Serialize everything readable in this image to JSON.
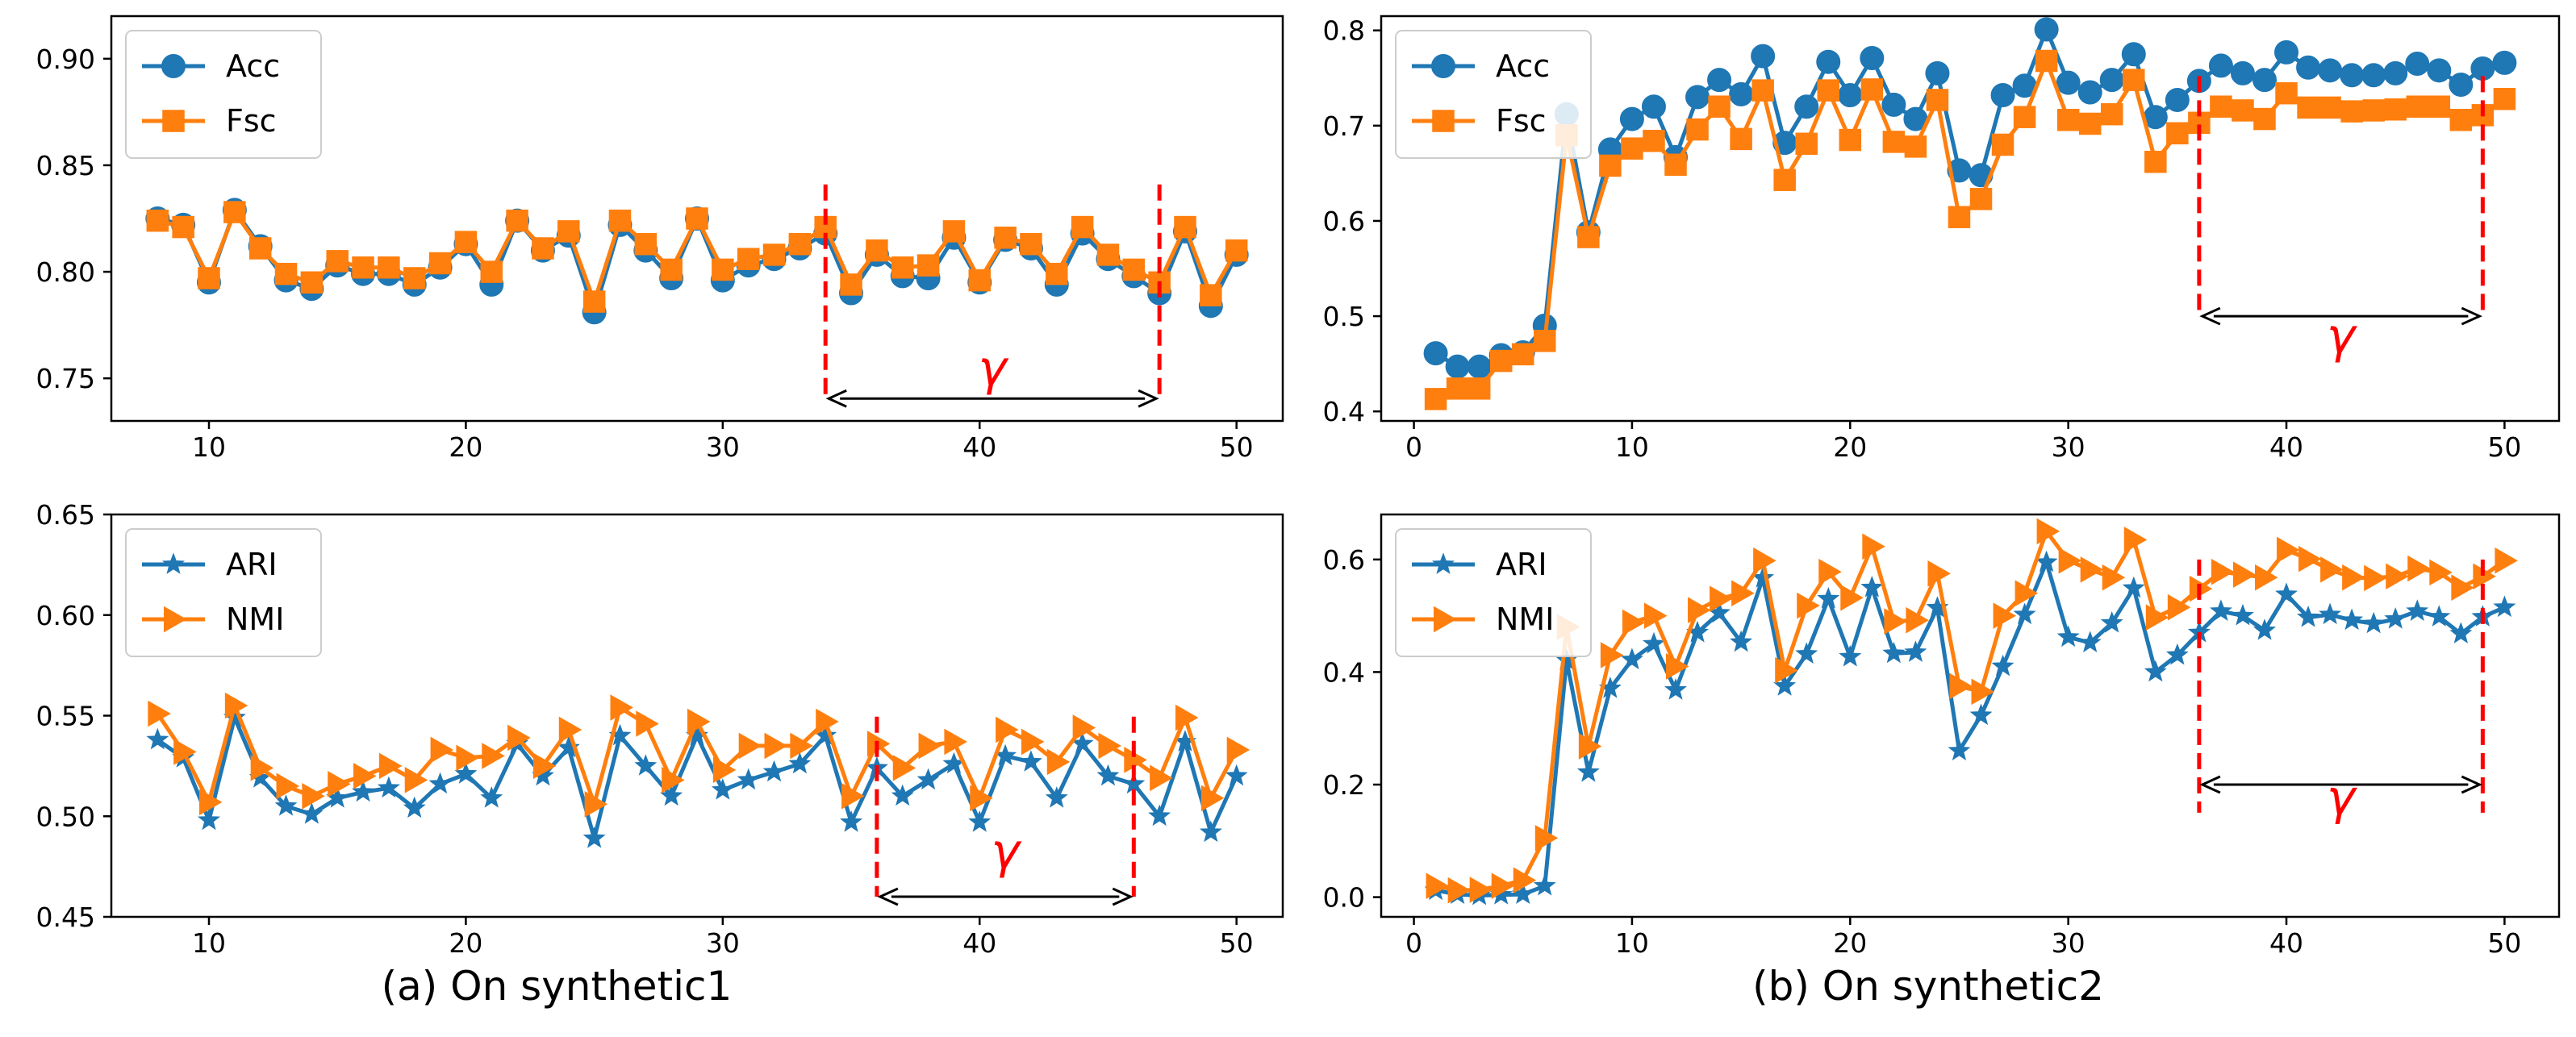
{
  "captions": {
    "a": "(a) On synthetic1",
    "b": "(b) On synthetic2"
  },
  "colors": {
    "blue": "#1f77b4",
    "orange": "#ff7f0e",
    "red": "#ff0000",
    "axis": "#000000"
  },
  "chart_data": [
    {
      "id": "a-top",
      "type": "line",
      "title": "",
      "xlabel": "",
      "ylabel": "",
      "xlim": [
        6.2,
        51.8
      ],
      "ylim": [
        0.73,
        0.92
      ],
      "xticks": [
        10,
        20,
        30,
        40,
        50
      ],
      "yticks": [
        0.75,
        0.8,
        0.85,
        0.9
      ],
      "ytick_labels": [
        "0.75",
        "0.80",
        "0.85",
        "0.90"
      ],
      "legend_position": "upper-left",
      "x": [
        8,
        9,
        10,
        11,
        12,
        13,
        14,
        15,
        16,
        17,
        18,
        19,
        20,
        21,
        22,
        23,
        24,
        25,
        26,
        27,
        28,
        29,
        30,
        31,
        32,
        33,
        34,
        35,
        36,
        37,
        38,
        39,
        40,
        41,
        42,
        43,
        44,
        45,
        46,
        47,
        48,
        49,
        50
      ],
      "series": [
        {
          "name": "Acc",
          "color": "#1f77b4",
          "marker": "circle",
          "values": [
            0.825,
            0.822,
            0.795,
            0.829,
            0.812,
            0.796,
            0.792,
            0.803,
            0.799,
            0.799,
            0.794,
            0.802,
            0.813,
            0.794,
            0.824,
            0.81,
            0.817,
            0.781,
            0.822,
            0.81,
            0.797,
            0.825,
            0.796,
            0.803,
            0.806,
            0.811,
            0.818,
            0.79,
            0.808,
            0.798,
            0.797,
            0.816,
            0.795,
            0.815,
            0.811,
            0.794,
            0.818,
            0.806,
            0.798,
            0.79,
            0.819,
            0.784,
            0.808
          ]
        },
        {
          "name": "Fsc",
          "color": "#ff7f0e",
          "marker": "square",
          "values": [
            0.824,
            0.821,
            0.797,
            0.828,
            0.811,
            0.799,
            0.795,
            0.805,
            0.802,
            0.802,
            0.797,
            0.804,
            0.814,
            0.8,
            0.824,
            0.811,
            0.819,
            0.786,
            0.824,
            0.813,
            0.801,
            0.825,
            0.801,
            0.806,
            0.808,
            0.813,
            0.821,
            0.794,
            0.81,
            0.802,
            0.803,
            0.819,
            0.796,
            0.816,
            0.813,
            0.799,
            0.821,
            0.808,
            0.801,
            0.795,
            0.821,
            0.789,
            0.81
          ]
        }
      ],
      "annotation": {
        "label": "γ",
        "x1": 34,
        "x2": 47,
        "arrow_y": 0.7405,
        "line_top": 0.841,
        "line_bottom": 0.7405,
        "label_y": 0.747
      }
    },
    {
      "id": "a-bottom",
      "type": "line",
      "title": "",
      "xlabel": "",
      "ylabel": "",
      "xlim": [
        6.2,
        51.8
      ],
      "ylim": [
        0.45,
        0.65
      ],
      "xticks": [
        10,
        20,
        30,
        40,
        50
      ],
      "yticks": [
        0.45,
        0.5,
        0.55,
        0.6,
        0.65
      ],
      "ytick_labels": [
        "0.45",
        "0.50",
        "0.55",
        "0.60",
        "0.65"
      ],
      "legend_position": "upper-left",
      "x": [
        8,
        9,
        10,
        11,
        12,
        13,
        14,
        15,
        16,
        17,
        18,
        19,
        20,
        21,
        22,
        23,
        24,
        25,
        26,
        27,
        28,
        29,
        30,
        31,
        32,
        33,
        34,
        35,
        36,
        37,
        38,
        39,
        40,
        41,
        42,
        43,
        44,
        45,
        46,
        47,
        48,
        49,
        50
      ],
      "series": [
        {
          "name": "ARI",
          "color": "#1f77b4",
          "marker": "star",
          "values": [
            0.538,
            0.529,
            0.498,
            0.549,
            0.519,
            0.505,
            0.501,
            0.509,
            0.512,
            0.514,
            0.504,
            0.516,
            0.521,
            0.509,
            0.536,
            0.52,
            0.534,
            0.489,
            0.54,
            0.525,
            0.51,
            0.54,
            0.513,
            0.518,
            0.522,
            0.526,
            0.54,
            0.497,
            0.524,
            0.51,
            0.518,
            0.526,
            0.497,
            0.53,
            0.527,
            0.509,
            0.536,
            0.52,
            0.516,
            0.5,
            0.537,
            0.492,
            0.52
          ]
        },
        {
          "name": "NMI",
          "color": "#ff7f0e",
          "marker": "triangle-right",
          "values": [
            0.551,
            0.532,
            0.507,
            0.555,
            0.524,
            0.515,
            0.51,
            0.516,
            0.52,
            0.525,
            0.518,
            0.533,
            0.529,
            0.53,
            0.539,
            0.525,
            0.543,
            0.506,
            0.554,
            0.546,
            0.518,
            0.547,
            0.523,
            0.535,
            0.535,
            0.535,
            0.547,
            0.51,
            0.536,
            0.524,
            0.535,
            0.537,
            0.509,
            0.543,
            0.537,
            0.527,
            0.544,
            0.535,
            0.528,
            0.519,
            0.549,
            0.509,
            0.533
          ]
        }
      ],
      "annotation": {
        "label": "γ",
        "x1": 36,
        "x2": 46,
        "arrow_y": 0.46,
        "line_top": 0.5495,
        "line_bottom": 0.46,
        "label_y": 0.4745
      }
    },
    {
      "id": "b-top",
      "type": "line",
      "title": "",
      "xlabel": "",
      "ylabel": "",
      "xlim": [
        -1.5,
        52.5
      ],
      "ylim": [
        0.39,
        0.815
      ],
      "xticks": [
        0,
        10,
        20,
        30,
        40,
        50
      ],
      "yticks": [
        0.4,
        0.5,
        0.6,
        0.7,
        0.8
      ],
      "ytick_labels": [
        "0.4",
        "0.5",
        "0.6",
        "0.7",
        "0.8"
      ],
      "legend_position": "upper-left",
      "x": [
        1,
        2,
        3,
        4,
        5,
        6,
        7,
        8,
        9,
        10,
        11,
        12,
        13,
        14,
        15,
        16,
        17,
        18,
        19,
        20,
        21,
        22,
        23,
        24,
        25,
        26,
        27,
        28,
        29,
        30,
        31,
        32,
        33,
        34,
        35,
        36,
        37,
        38,
        39,
        40,
        41,
        42,
        43,
        44,
        45,
        46,
        47,
        48,
        49,
        50
      ],
      "series": [
        {
          "name": "Acc",
          "color": "#1f77b4",
          "marker": "circle",
          "values": [
            0.461,
            0.447,
            0.447,
            0.459,
            0.462,
            0.49,
            0.712,
            0.588,
            0.675,
            0.707,
            0.72,
            0.667,
            0.73,
            0.748,
            0.733,
            0.773,
            0.682,
            0.72,
            0.767,
            0.732,
            0.771,
            0.722,
            0.707,
            0.755,
            0.653,
            0.648,
            0.732,
            0.742,
            0.801,
            0.745,
            0.735,
            0.748,
            0.775,
            0.709,
            0.727,
            0.747,
            0.763,
            0.755,
            0.748,
            0.777,
            0.761,
            0.758,
            0.753,
            0.753,
            0.755,
            0.765,
            0.758,
            0.743,
            0.76,
            0.766
          ]
        },
        {
          "name": "Fsc",
          "color": "#ff7f0e",
          "marker": "square",
          "values": [
            0.413,
            0.424,
            0.424,
            0.453,
            0.46,
            0.474,
            0.69,
            0.583,
            0.658,
            0.676,
            0.684,
            0.659,
            0.696,
            0.72,
            0.686,
            0.737,
            0.643,
            0.681,
            0.737,
            0.685,
            0.738,
            0.683,
            0.678,
            0.727,
            0.604,
            0.623,
            0.68,
            0.709,
            0.768,
            0.706,
            0.702,
            0.712,
            0.748,
            0.662,
            0.692,
            0.703,
            0.72,
            0.716,
            0.707,
            0.734,
            0.719,
            0.719,
            0.715,
            0.716,
            0.717,
            0.72,
            0.72,
            0.706,
            0.711,
            0.728
          ]
        }
      ],
      "annotation": {
        "label": "γ",
        "x1": 36,
        "x2": 49,
        "arrow_y": 0.5,
        "line_top": 0.752,
        "line_bottom": 0.5,
        "label_y": 0.462
      }
    },
    {
      "id": "b-bottom",
      "type": "line",
      "title": "",
      "xlabel": "",
      "ylabel": "",
      "xlim": [
        -1.5,
        52.5
      ],
      "ylim": [
        -0.035,
        0.68
      ],
      "xticks": [
        0,
        10,
        20,
        30,
        40,
        50
      ],
      "yticks": [
        0.0,
        0.2,
        0.4,
        0.6
      ],
      "ytick_labels": [
        "0.0",
        "0.2",
        "0.4",
        "0.6"
      ],
      "legend_position": "upper-left",
      "x": [
        1,
        2,
        3,
        4,
        5,
        6,
        7,
        8,
        9,
        10,
        11,
        12,
        13,
        14,
        15,
        16,
        17,
        18,
        19,
        20,
        21,
        22,
        23,
        24,
        25,
        26,
        27,
        28,
        29,
        30,
        31,
        32,
        33,
        34,
        35,
        36,
        37,
        38,
        39,
        40,
        41,
        42,
        43,
        44,
        45,
        46,
        47,
        48,
        49,
        50
      ],
      "series": [
        {
          "name": "ARI",
          "color": "#1f77b4",
          "marker": "star",
          "values": [
            0.012,
            0.005,
            0.003,
            0.004,
            0.005,
            0.02,
            0.421,
            0.222,
            0.371,
            0.422,
            0.45,
            0.368,
            0.47,
            0.505,
            0.453,
            0.567,
            0.375,
            0.432,
            0.53,
            0.427,
            0.55,
            0.433,
            0.435,
            0.514,
            0.26,
            0.323,
            0.41,
            0.502,
            0.595,
            0.462,
            0.452,
            0.487,
            0.549,
            0.4,
            0.43,
            0.47,
            0.508,
            0.5,
            0.474,
            0.538,
            0.497,
            0.502,
            0.492,
            0.486,
            0.494,
            0.508,
            0.498,
            0.468,
            0.498,
            0.515
          ]
        },
        {
          "name": "NMI",
          "color": "#ff7f0e",
          "marker": "triangle-right",
          "values": [
            0.02,
            0.012,
            0.013,
            0.02,
            0.03,
            0.105,
            0.48,
            0.268,
            0.43,
            0.488,
            0.5,
            0.41,
            0.51,
            0.53,
            0.54,
            0.598,
            0.403,
            0.518,
            0.578,
            0.532,
            0.623,
            0.49,
            0.492,
            0.575,
            0.375,
            0.365,
            0.5,
            0.54,
            0.65,
            0.598,
            0.582,
            0.568,
            0.635,
            0.497,
            0.515,
            0.548,
            0.578,
            0.573,
            0.568,
            0.617,
            0.601,
            0.582,
            0.568,
            0.567,
            0.57,
            0.584,
            0.577,
            0.55,
            0.57,
            0.598
          ]
        }
      ],
      "annotation": {
        "label": "γ",
        "x1": 36,
        "x2": 49,
        "arrow_y": 0.2,
        "line_top": 0.6,
        "line_bottom": 0.15,
        "label_y": 0.148
      }
    }
  ]
}
